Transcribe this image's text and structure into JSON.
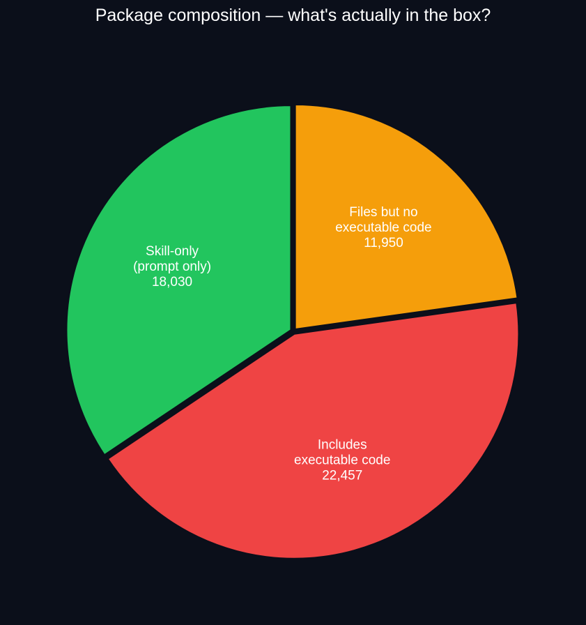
{
  "chart_data": {
    "type": "pie",
    "title": "Package composition — what's actually in the box?",
    "slices": [
      {
        "label_lines": [
          "Files but no",
          "executable code"
        ],
        "value": 11950,
        "value_label": "11,950",
        "color": "#f59e0b"
      },
      {
        "label_lines": [
          "Includes",
          "executable code"
        ],
        "value": 22457,
        "value_label": "22,457",
        "color": "#ef4444"
      },
      {
        "label_lines": [
          "Skill-only",
          "(prompt only)"
        ],
        "value": 18030,
        "value_label": "18,030",
        "color": "#22c55e"
      }
    ],
    "start": "12 o'clock",
    "direction": "clockwise",
    "background": "#0b0f1a",
    "edge_color": "#0b0f1a"
  }
}
